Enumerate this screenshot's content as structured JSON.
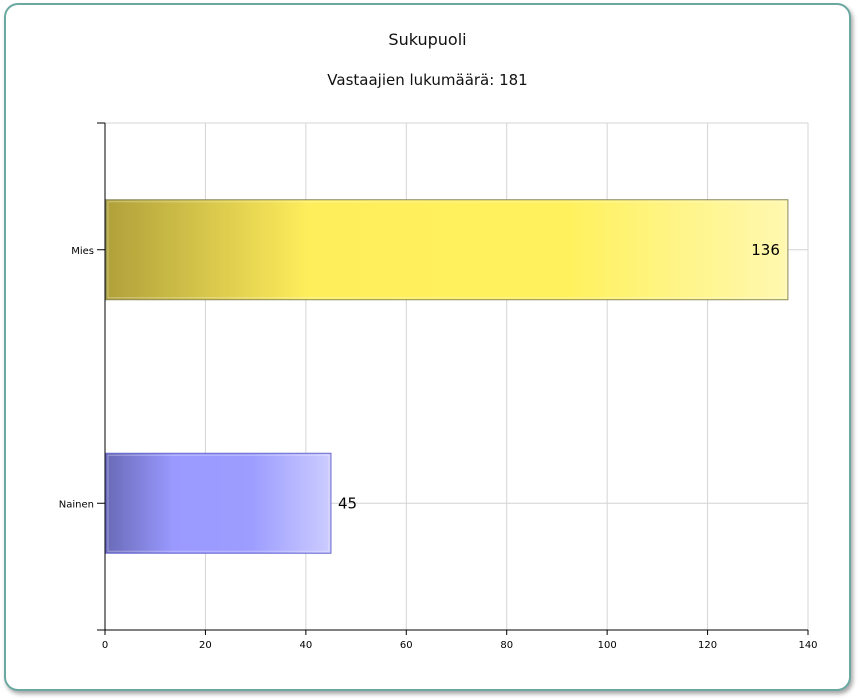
{
  "chart_data": {
    "type": "bar",
    "orientation": "horizontal",
    "title": "Sukupuoli",
    "subtitle": "Vastaajien lukumäärä: 181",
    "categories": [
      "Mies",
      "Nainen"
    ],
    "values": [
      136,
      45
    ],
    "data_labels": [
      "136",
      "45"
    ],
    "xlim": [
      0,
      140
    ],
    "x_ticks": [
      0,
      20,
      40,
      60,
      80,
      100,
      120,
      140
    ],
    "x_tick_labels": [
      "0",
      "20",
      "40",
      "60",
      "80",
      "100",
      "120",
      "140"
    ],
    "grid": true,
    "legend": "none",
    "colors": [
      "#fff060",
      "#9999ff"
    ]
  }
}
